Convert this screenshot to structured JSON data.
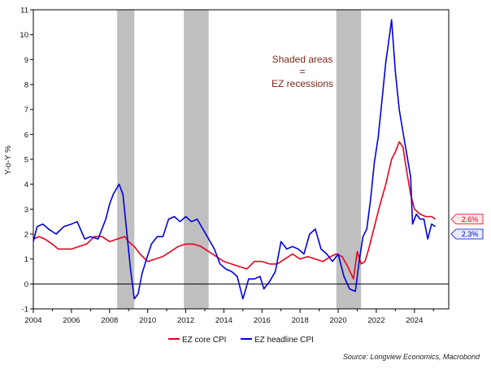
{
  "chart_data": {
    "type": "line",
    "ylabel": "Y-o-Y %",
    "xlim": [
      2004,
      2025.8
    ],
    "ylim": [
      -1,
      11
    ],
    "x_ticks": [
      2004,
      2006,
      2008,
      2010,
      2012,
      2014,
      2016,
      2018,
      2020,
      2022,
      2024
    ],
    "y_ticks": [
      -1,
      0,
      1,
      2,
      3,
      4,
      5,
      6,
      7,
      8,
      9,
      10,
      11
    ],
    "grid": false,
    "zero_line": true,
    "legend_placement": "bottom-center",
    "recessions": [
      [
        2008.4,
        2009.3
      ],
      [
        2011.9,
        2013.2
      ],
      [
        2019.9,
        2021.2
      ]
    ],
    "annotation": [
      "Shaded areas",
      "=",
      "EZ recessions"
    ],
    "source": "Source: Longview Economics, Macrobond",
    "colors": {
      "core": "#e8001c",
      "headline": "#0000e0",
      "recession": "#bfbfbf",
      "annotation": "#7a2a1a",
      "core_label_bg": "#fde6e6",
      "headline_label_bg": "#e6ecfb"
    },
    "series": [
      {
        "name": "EZ core CPI",
        "end_label": "2.6%",
        "x": [
          2004.0,
          2004.3,
          2004.6,
          2005.0,
          2005.3,
          2005.6,
          2006.0,
          2006.4,
          2006.8,
          2007.2,
          2007.6,
          2008.0,
          2008.4,
          2008.8,
          2009.0,
          2009.3,
          2009.6,
          2010.0,
          2010.4,
          2010.8,
          2011.2,
          2011.6,
          2012.0,
          2012.4,
          2012.8,
          2013.2,
          2013.6,
          2014.0,
          2014.4,
          2014.8,
          2015.2,
          2015.6,
          2016.0,
          2016.4,
          2016.8,
          2017.2,
          2017.6,
          2018.0,
          2018.4,
          2018.8,
          2019.2,
          2019.6,
          2019.9,
          2020.2,
          2020.5,
          2020.8,
          2021.0,
          2021.2,
          2021.4,
          2021.6,
          2021.8,
          2022.0,
          2022.2,
          2022.5,
          2022.8,
          2023.0,
          2023.2,
          2023.4,
          2023.6,
          2023.8,
          2024.0,
          2024.3,
          2024.6,
          2024.9,
          2025.1
        ],
        "values": [
          1.8,
          1.9,
          1.8,
          1.6,
          1.4,
          1.4,
          1.4,
          1.5,
          1.6,
          1.9,
          1.9,
          1.7,
          1.8,
          1.9,
          1.7,
          1.5,
          1.2,
          0.9,
          1.0,
          1.1,
          1.3,
          1.5,
          1.6,
          1.6,
          1.5,
          1.3,
          1.1,
          0.9,
          0.8,
          0.7,
          0.6,
          0.9,
          0.9,
          0.8,
          0.8,
          1.0,
          1.2,
          1.0,
          1.1,
          1.0,
          0.9,
          1.1,
          1.2,
          1.1,
          0.7,
          0.2,
          1.3,
          0.8,
          0.9,
          1.4,
          2.0,
          2.6,
          3.2,
          4.0,
          5.0,
          5.3,
          5.7,
          5.5,
          4.5,
          3.6,
          3.0,
          2.8,
          2.7,
          2.7,
          2.6
        ]
      },
      {
        "name": "EZ headline CPI",
        "end_label": "2.3%",
        "x": [
          2004.0,
          2004.2,
          2004.5,
          2004.8,
          2005.2,
          2005.6,
          2006.0,
          2006.3,
          2006.7,
          2007.0,
          2007.4,
          2007.8,
          2008.0,
          2008.2,
          2008.5,
          2008.7,
          2008.9,
          2009.1,
          2009.3,
          2009.5,
          2009.7,
          2009.9,
          2010.2,
          2010.5,
          2010.8,
          2011.1,
          2011.4,
          2011.7,
          2012.0,
          2012.3,
          2012.6,
          2012.9,
          2013.2,
          2013.5,
          2013.8,
          2014.1,
          2014.4,
          2014.7,
          2015.0,
          2015.3,
          2015.6,
          2015.9,
          2016.1,
          2016.4,
          2016.7,
          2017.0,
          2017.3,
          2017.6,
          2017.9,
          2018.2,
          2018.5,
          2018.8,
          2019.1,
          2019.4,
          2019.7,
          2020.0,
          2020.3,
          2020.6,
          2020.9,
          2021.1,
          2021.3,
          2021.5,
          2021.7,
          2021.9,
          2022.1,
          2022.3,
          2022.5,
          2022.7,
          2022.8,
          2023.0,
          2023.2,
          2023.4,
          2023.6,
          2023.8,
          2023.9,
          2024.1,
          2024.3,
          2024.5,
          2024.7,
          2024.9,
          2025.1
        ],
        "values": [
          1.7,
          2.3,
          2.4,
          2.2,
          2.0,
          2.3,
          2.4,
          2.5,
          1.8,
          1.9,
          1.8,
          2.6,
          3.2,
          3.6,
          4.0,
          3.6,
          2.1,
          0.6,
          -0.6,
          -0.4,
          0.4,
          0.9,
          1.6,
          1.9,
          1.9,
          2.6,
          2.7,
          2.5,
          2.7,
          2.5,
          2.6,
          2.2,
          1.8,
          1.4,
          0.8,
          0.6,
          0.5,
          0.3,
          -0.6,
          0.2,
          0.2,
          0.3,
          -0.2,
          0.1,
          0.5,
          1.7,
          1.4,
          1.5,
          1.4,
          1.2,
          2.0,
          2.2,
          1.4,
          1.2,
          0.9,
          1.2,
          0.3,
          -0.2,
          -0.3,
          0.9,
          1.9,
          2.2,
          3.4,
          4.9,
          5.9,
          7.4,
          8.9,
          10.0,
          10.6,
          8.5,
          7.0,
          6.1,
          5.2,
          4.3,
          2.4,
          2.8,
          2.6,
          2.6,
          1.8,
          2.4,
          2.3
        ]
      }
    ]
  }
}
